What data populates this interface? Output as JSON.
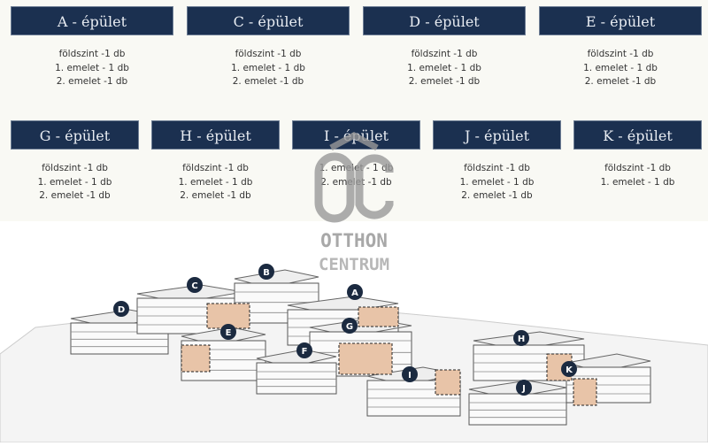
{
  "buildings_top": [
    {
      "title": "A - épület",
      "lines": [
        "földszint -1 db",
        "1. emelet - 1 db",
        "2. emelet -1 db"
      ]
    },
    {
      "title": "C - épület",
      "lines": [
        "földszint -1 db",
        "1. emelet - 1 db",
        "2. emelet -1 db"
      ]
    },
    {
      "title": "D - épület",
      "lines": [
        "földszint -1 db",
        "1. emelet - 1 db",
        "2. emelet -1 db"
      ]
    },
    {
      "title": "E - épület",
      "lines": [
        "földszint -1 db",
        "1. emelet - 1 db",
        "2. emelet -1 db"
      ]
    }
  ],
  "buildings_bottom": [
    {
      "title": "G - épület",
      "lines": [
        "földszint -1 db",
        "1. emelet - 1 db",
        "2. emelet -1 db"
      ]
    },
    {
      "title": "H - épület",
      "lines": [
        "földszint -1 db",
        "1. emelet - 1 db",
        "2. emelet -1 db"
      ]
    },
    {
      "title": "I - épület",
      "lines": [
        "1. emelet - 1 db",
        "2. emelet -1 db"
      ]
    },
    {
      "title": "J - épület",
      "lines": [
        "földszint -1 db",
        "1. emelet - 1 db",
        "2. emelet -1 db"
      ]
    },
    {
      "title": "K - épület",
      "lines": [
        "földszint -1 db",
        "1. emelet - 1 db"
      ]
    }
  ],
  "watermark": {
    "mark": "OC",
    "line1": "OTTHON",
    "line2": "CENTRUM"
  },
  "map_markers": [
    "A",
    "B",
    "C",
    "D",
    "E",
    "F",
    "G",
    "H",
    "I",
    "J",
    "K"
  ],
  "colors": {
    "header": "#1b3050",
    "highlight": "#e8c4a8",
    "marker": "#1b2a40"
  }
}
